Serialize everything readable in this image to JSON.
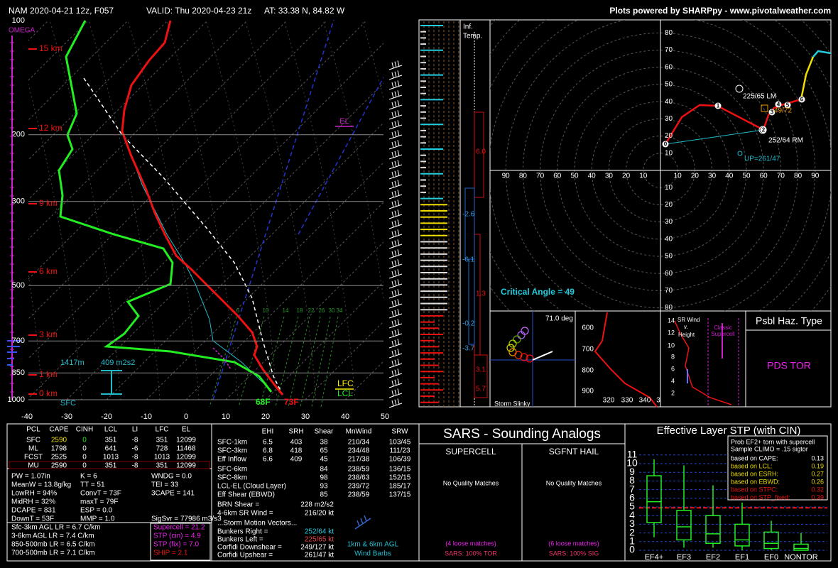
{
  "header": {
    "run": "NAM 2020-04-21 12z, F057",
    "valid": "VALID: Thu 2020-04-23 21z",
    "location": "AT: 33.38 N, 84.82 W",
    "credit": "Plots powered by SHARPpy - www.pivotalweather.com"
  },
  "skewt": {
    "omega": "OMEGA",
    "pressures": [
      100,
      200,
      300,
      500,
      700,
      850,
      1000
    ],
    "temps": [
      -40,
      -30,
      -20,
      -10,
      0,
      10,
      20,
      30,
      40,
      50
    ],
    "heights": [
      "15 km",
      "12 km",
      "9 km",
      "6 km",
      "3 km",
      "1 km",
      "0 km"
    ],
    "mixing_ratios": [
      "6",
      "10",
      "14",
      "18",
      "22",
      "26",
      "30",
      "34"
    ],
    "el": "EL",
    "lfc": "LFC",
    "lcl": "LCL",
    "sfc": "SFC",
    "dewpoint": "68F",
    "temperature": "73F",
    "esrh_depth": "1417m",
    "esrh": "409 m2s2"
  },
  "inferred_temp": {
    "title": [
      "Inf.",
      "Temp."
    ],
    "blue": [
      "-2.6",
      "-6.1",
      "-0.2",
      "-3.7"
    ],
    "red": [
      "6.0",
      "1.3",
      "3.1",
      "5.7"
    ]
  },
  "hodograph": {
    "rings": [
      10,
      20,
      30,
      40,
      50,
      60,
      70,
      80,
      90
    ],
    "markers": [
      "0",
      "1",
      "2",
      "3",
      "4",
      "5",
      "6"
    ],
    "left_mover": "225/65 LM",
    "right_mover": "252/64 RM",
    "mean_wind": "49/72",
    "upshear": "UP=261/47",
    "critical_angle": "Critical Angle = 49"
  },
  "slinky": {
    "angle": "71.0 deg",
    "title": "Storm Slinky"
  },
  "theta": {
    "pressures": [
      "600",
      "700",
      "800",
      "900"
    ],
    "thetas": [
      "320",
      "330",
      "340",
      "3"
    ]
  },
  "sr_wind": {
    "title": [
      "SR Wind",
      "v.",
      "Height"
    ],
    "ticks": [
      "14",
      "12",
      "10",
      "8",
      "6",
      "4",
      "2"
    ],
    "classic": [
      "Classic",
      "Supercell"
    ]
  },
  "hazard": {
    "title": "Psbl Haz. Type",
    "value": "PDS TOR"
  },
  "thermo": {
    "headers": [
      "PCL",
      "CAPE",
      "CINH",
      "LCL",
      "LI",
      "LFC",
      "EL"
    ],
    "rows": [
      [
        "SFC",
        "2590",
        "0",
        "351",
        "-8",
        "351",
        "12099"
      ],
      [
        "ML",
        "1798",
        "0",
        "641",
        "-6",
        "728",
        "11468"
      ],
      [
        "FCST",
        "2525",
        "0",
        "1013",
        "-8",
        "1013",
        "12099"
      ],
      [
        "MU",
        "2590",
        "0",
        "351",
        "-8",
        "351",
        "12099"
      ]
    ],
    "left": [
      "PW = 1.07in",
      "MeanW = 13.8g/kg",
      "LowRH = 94%",
      "MidRH = 32%",
      "DCAPE = 831",
      "DownT = 53F"
    ],
    "middle": [
      "K = 6",
      "TT = 51",
      "ConvT = 73F",
      "maxT = 79F",
      "ESP = 0.0",
      "MMP = 1.0"
    ],
    "right": [
      "WNDG = 0.0",
      "TEI = 33",
      "3CAPE = 141"
    ],
    "sigsvr": "SigSvr = 77986 m3/s3",
    "lapse_rates": [
      "Sfc-3km AGL LR = 6.7 C/km",
      "3-6km AGL LR = 7.4 C/km",
      "850-500mb LR = 6.5 C/km",
      "700-500mb LR = 7.1 C/km"
    ],
    "composites": [
      "Supercell = 21.2",
      "STP (cin) = 4.9",
      "STP (fix) = 7.0",
      "SHIP = 2.1"
    ]
  },
  "kinematics": {
    "headers": [
      "EHI",
      "SRH",
      "Shear",
      "MnWind",
      "SRW"
    ],
    "rows": [
      [
        "SFC-1km",
        "6.5",
        "403",
        "38",
        "210/34",
        "103/45"
      ],
      [
        "SFC-3km",
        "6.8",
        "418",
        "65",
        "234/48",
        "111/23"
      ],
      [
        "Eff Inflow",
        "6.6",
        "409",
        "45",
        "217/38",
        "106/39"
      ]
    ],
    "rows2": [
      [
        "SFC-6km",
        "84",
        "238/59",
        "136/15"
      ],
      [
        "SFC-8km",
        "98",
        "238/63",
        "152/15"
      ],
      [
        "LCL-EL (Cloud Layer)",
        "93",
        "239/72",
        "185/17"
      ],
      [
        "Eff Shear (EBWD)",
        "85",
        "238/59",
        "137/15"
      ]
    ],
    "misc": [
      [
        "BRN Shear =",
        "228 m2/s2"
      ],
      [
        "4-6km SR Wind =",
        "216/20 kt"
      ]
    ],
    "motion_title": "...Storm Motion Vectors...",
    "motions": [
      [
        "Bunkers Right =",
        "252/64 kt"
      ],
      [
        "Bunkers Left =",
        "225/65 kt"
      ],
      [
        "Corfidi Downshear =",
        "249/127 kt"
      ],
      [
        "Corfidi Upshear =",
        "261/47 kt"
      ]
    ],
    "barbs": [
      "1km & 6km AGL",
      "Wind Barbs"
    ]
  },
  "sars": {
    "title": "SARS - Sounding Analogs",
    "supercell": [
      "SUPERCELL",
      "No Quality Matches",
      "(4 loose matches)",
      "SARS: 100% TOR"
    ],
    "hail": [
      "SGFNT HAIL",
      "No Quality Matches",
      "(6 loose matches)",
      "SARS: 100% SIG"
    ]
  },
  "stp": {
    "title": "Effective Layer STP (with CIN)",
    "yticks": [
      0,
      1,
      2,
      3,
      4,
      5,
      6,
      7,
      8,
      9,
      10,
      11
    ],
    "categories": [
      "EF4+",
      "EF3",
      "EF2",
      "EF1",
      "EF0",
      "NONTOR"
    ],
    "boxes": [
      [
        1.5,
        3.2,
        5.6,
        8.6,
        10.5
      ],
      [
        0.3,
        1.2,
        2.7,
        4.6,
        9.8
      ],
      [
        0.3,
        0.8,
        1.9,
        4,
        7.5
      ],
      [
        0,
        0.5,
        1.2,
        3,
        5.5
      ],
      [
        0,
        0.2,
        0.8,
        2.1,
        3.4
      ],
      [
        0,
        0,
        0.2,
        0.7,
        2
      ]
    ],
    "current": 4.9,
    "legend_header": [
      "Prob EF2+ torn with supercell",
      "Sample CLIMO = .15 sigtor"
    ],
    "legend": [
      [
        "based on CAPE:",
        "0.13"
      ],
      [
        "based on LCL:",
        "0.19"
      ],
      [
        "based on ESRH:",
        "0.27"
      ],
      [
        "based on EBWD:",
        "0.26"
      ],
      [
        "based on STPC:",
        "0.32"
      ],
      [
        "based on STP_fixed:",
        "0.39"
      ]
    ]
  }
}
